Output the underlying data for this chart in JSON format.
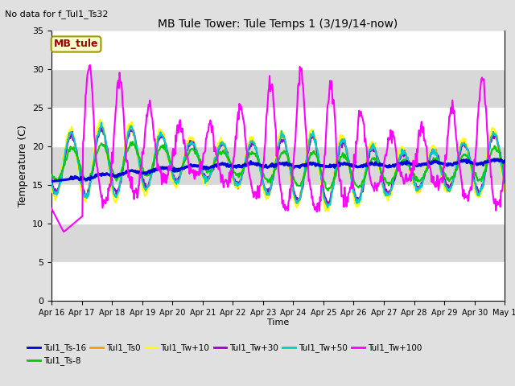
{
  "title": "MB Tule Tower: Tule Temps 1 (3/19/14-now)",
  "subtitle": "No data for f_Tul1_Ts32",
  "ylabel": "Temperature (C)",
  "xlabel": "Time",
  "ylim": [
    0,
    35
  ],
  "yticks": [
    0,
    5,
    10,
    15,
    20,
    25,
    30,
    35
  ],
  "fig_facecolor": "#e0e0e0",
  "plot_bg_color": "#ffffff",
  "legend_box_label": "MB_tule",
  "legend_box_facecolor": "#ffffcc",
  "legend_box_edgecolor": "#999900",
  "legend_box_textcolor": "#990000",
  "series": [
    {
      "label": "Tul1_Ts-16",
      "color": "#0000dd",
      "linewidth": 2.2,
      "zorder": 5
    },
    {
      "label": "Tul1_Ts-8",
      "color": "#00cc00",
      "linewidth": 1.5,
      "zorder": 4
    },
    {
      "label": "Tul1_Ts0",
      "color": "#ff9900",
      "linewidth": 1.5,
      "zorder": 3
    },
    {
      "label": "Tul1_Tw+10",
      "color": "#ffff00",
      "linewidth": 1.5,
      "zorder": 3
    },
    {
      "label": "Tul1_Tw+30",
      "color": "#9900cc",
      "linewidth": 1.5,
      "zorder": 3
    },
    {
      "label": "Tul1_Tw+50",
      "color": "#00cccc",
      "linewidth": 1.5,
      "zorder": 3
    },
    {
      "label": "Tul1_Tw+100",
      "color": "#ff00ff",
      "linewidth": 1.5,
      "zorder": 6
    }
  ],
  "xtick_labels": [
    "Apr 16",
    "Apr 17",
    "Apr 18",
    "Apr 19",
    "Apr 20",
    "Apr 21",
    "Apr 22",
    "Apr 23",
    "Apr 24",
    "Apr 25",
    "Apr 26",
    "Apr 27",
    "Apr 28",
    "Apr 29",
    "Apr 30",
    "May 1"
  ],
  "band_colors": [
    "#ffffff",
    "#d8d8d8"
  ]
}
